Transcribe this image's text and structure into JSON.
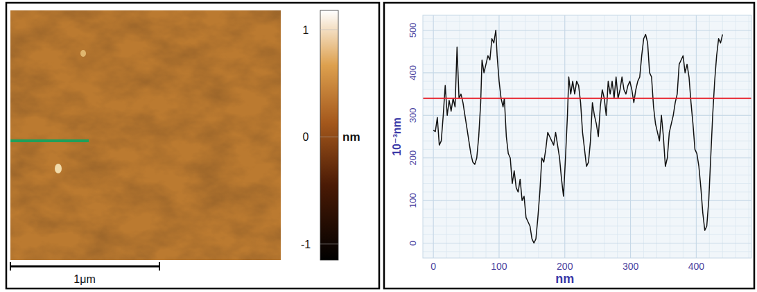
{
  "chart_data": [
    {
      "type": "image",
      "colorbar": {
        "range": [
          -1.15,
          1.18
        ],
        "ticks": [
          -1,
          0,
          1
        ],
        "label": "nm"
      },
      "scale_bar": "1μm"
    },
    {
      "type": "line",
      "color": "#111111",
      "x": [
        0,
        3,
        6,
        9,
        12,
        15,
        18,
        21,
        24,
        27,
        30,
        33,
        36,
        39,
        42,
        45,
        48,
        51,
        54,
        57,
        60,
        63,
        66,
        69,
        72,
        74,
        77,
        80,
        83,
        86,
        89,
        92,
        95,
        97,
        100,
        103,
        106,
        108,
        111,
        114,
        117,
        120,
        123,
        126,
        129,
        132,
        135,
        138,
        141,
        144,
        147,
        150,
        153,
        156,
        159,
        162,
        165,
        168,
        171,
        174,
        177,
        180,
        183,
        186,
        189,
        192,
        195,
        198,
        201,
        204,
        206,
        209,
        212,
        215,
        218,
        221,
        224,
        227,
        230,
        233,
        236,
        239,
        242,
        245,
        248,
        251,
        254,
        257,
        260,
        263,
        266,
        269,
        272,
        275,
        278,
        281,
        284,
        287,
        290,
        293,
        296,
        299,
        302,
        305,
        308,
        311,
        314,
        317,
        320,
        323,
        326,
        329,
        332,
        335,
        338,
        341,
        344,
        347,
        350,
        353,
        356,
        359,
        362,
        365,
        368,
        371,
        374,
        377,
        380,
        383,
        386,
        389,
        392,
        395,
        398,
        401,
        404,
        407,
        410,
        413,
        416,
        419,
        422,
        425,
        428,
        431,
        434,
        437,
        440
      ],
      "values": [
        265,
        262,
        295,
        230,
        240,
        300,
        370,
        300,
        335,
        310,
        340,
        320,
        460,
        340,
        350,
        330,
        300,
        270,
        240,
        210,
        190,
        185,
        200,
        250,
        330,
        430,
        400,
        420,
        440,
        430,
        480,
        470,
        500,
        440,
        380,
        340,
        320,
        340,
        250,
        210,
        200,
        140,
        170,
        130,
        120,
        150,
        100,
        110,
        60,
        50,
        40,
        10,
        0,
        10,
        60,
        120,
        200,
        190,
        220,
        260,
        250,
        240,
        230,
        260,
        230,
        200,
        150,
        110,
        200,
        300,
        390,
        350,
        380,
        350,
        380,
        370,
        330,
        260,
        220,
        180,
        190,
        240,
        330,
        300,
        280,
        250,
        320,
        360,
        340,
        300,
        380,
        350,
        380,
        340,
        390,
        340,
        360,
        390,
        360,
        350,
        370,
        380,
        360,
        330,
        360,
        380,
        390,
        440,
        480,
        490,
        470,
        400,
        390,
        320,
        280,
        260,
        240,
        300,
        250,
        180,
        200,
        260,
        280,
        300,
        330,
        350,
        420,
        430,
        440,
        400,
        420,
        390,
        330,
        280,
        220,
        210,
        180,
        130,
        70,
        30,
        40,
        100,
        200,
        300,
        380,
        440,
        480,
        470,
        490
      ],
      "xlim": [
        -16,
        484
      ],
      "xticks": [
        0,
        100,
        200,
        300,
        400
      ],
      "ylim": [
        -35,
        535
      ],
      "yticks": [
        0,
        100,
        200,
        300,
        400,
        500
      ],
      "x_label": "nm",
      "y_label": "10⁻³nm",
      "grid": true,
      "reference_line": {
        "value": 340,
        "color": "#e8202a"
      }
    }
  ]
}
